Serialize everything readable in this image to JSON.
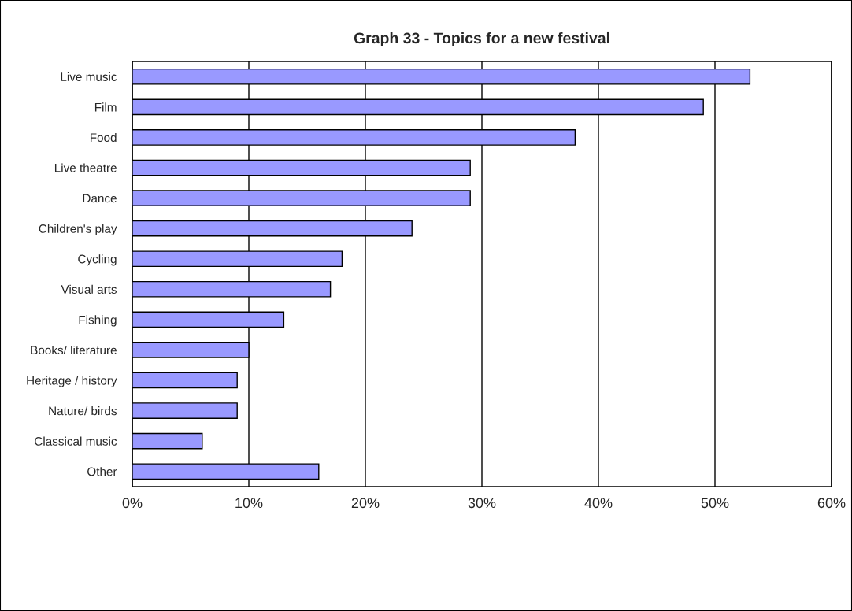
{
  "chart_data": {
    "type": "bar",
    "orientation": "horizontal",
    "title": "Graph 33 - Topics for a new festival",
    "categories": [
      "Live music",
      "Film",
      "Food",
      "Live theatre",
      "Dance",
      "Children's play",
      "Cycling",
      "Visual arts",
      "Fishing",
      "Books/ literature",
      "Heritage / history",
      "Nature/ birds",
      "Classical music",
      "Other"
    ],
    "values": [
      53,
      49,
      38,
      29,
      29,
      24,
      18,
      17,
      13,
      10,
      9,
      9,
      6,
      16
    ],
    "color": "#9999ff",
    "xlim": [
      0,
      60
    ],
    "xticks": [
      {
        "value": 0,
        "label": "0%"
      },
      {
        "value": 10,
        "label": "10%"
      },
      {
        "value": 20,
        "label": "20%"
      },
      {
        "value": 30,
        "label": "30%"
      },
      {
        "value": 40,
        "label": "40%"
      },
      {
        "value": 50,
        "label": "50%"
      },
      {
        "value": 60,
        "label": "60%"
      }
    ],
    "grid": "x",
    "legend": false
  }
}
